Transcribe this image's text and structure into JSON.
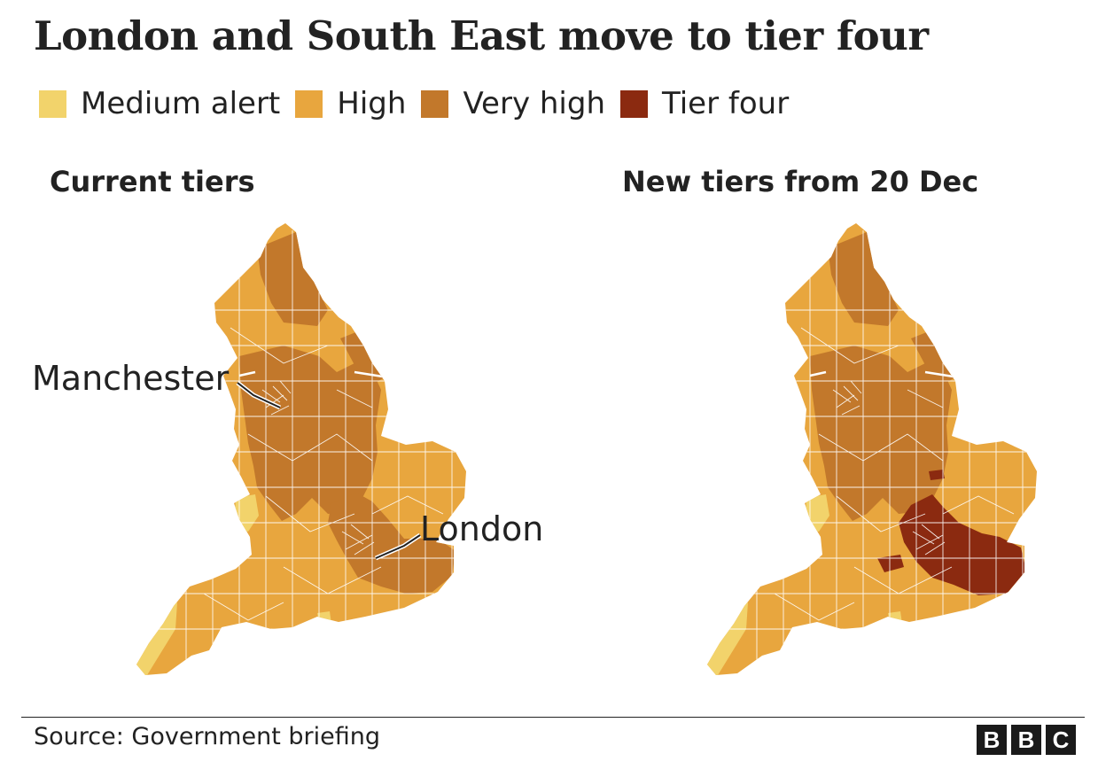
{
  "title": "London and South East move to tier four",
  "legend": [
    {
      "label": "Medium alert",
      "color": "#f2d36b"
    },
    {
      "label": "High",
      "color": "#e8a63e"
    },
    {
      "label": "Very high",
      "color": "#c2782b"
    },
    {
      "label": "Tier four",
      "color": "#8b2a10"
    }
  ],
  "panels": {
    "left": {
      "title": "Current tiers"
    },
    "right": {
      "title": "New tiers from 20 Dec"
    }
  },
  "callouts": {
    "manchester": "Manchester",
    "london": "London"
  },
  "footer": {
    "source": "Source: Government briefing",
    "logo": [
      "B",
      "B",
      "C"
    ]
  }
}
